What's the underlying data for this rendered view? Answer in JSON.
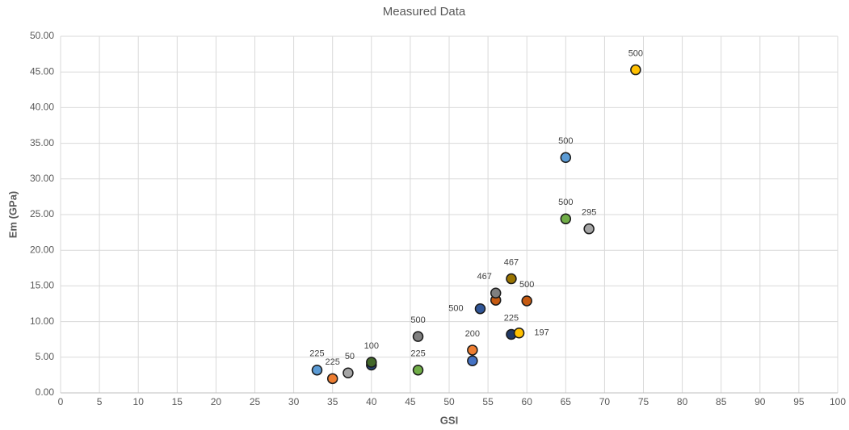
{
  "chart_data": {
    "type": "scatter",
    "title": "Measured Data",
    "x_label": "GSI",
    "y_label": "Em (GPa)",
    "x": [
      33,
      35,
      37,
      40,
      40,
      46,
      46,
      53,
      53,
      54,
      56,
      56,
      58,
      58,
      59,
      60,
      65,
      65,
      68,
      74
    ],
    "values": [
      3.2,
      2.0,
      2.8,
      3.9,
      4.3,
      3.2,
      7.9,
      4.5,
      6.0,
      11.8,
      13.0,
      14.0,
      16.0,
      8.2,
      8.4,
      12.9,
      33.0,
      24.4,
      23.0,
      45.3
    ],
    "colors": [
      "#5b9bd5",
      "#ed7d31",
      "#a5a5a5",
      "#264478",
      "#43682b",
      "#70ad47",
      "#7f7f7f",
      "#4472c4",
      "#ed7d31",
      "#2f5597",
      "#c55a11",
      "#7f7f7f",
      "#997300",
      "#203864",
      "#ffc000",
      "#c55a11",
      "#5b9bd5",
      "#70ad47",
      "#a5a5a5",
      "#ffc000"
    ],
    "point_labels": [
      "225",
      "225",
      "50",
      null,
      "100",
      "225",
      "500",
      null,
      "200",
      "500",
      null,
      "467",
      "467",
      "225",
      "197",
      "500",
      "500",
      "500",
      "295",
      "500"
    ],
    "xlim": [
      0,
      100
    ],
    "xticks": [
      0,
      5,
      10,
      15,
      20,
      25,
      30,
      35,
      40,
      45,
      50,
      55,
      60,
      65,
      70,
      75,
      80,
      85,
      90,
      95,
      100
    ],
    "ylim": [
      0,
      50
    ],
    "yticks": [
      {
        "value": 0,
        "label": "0.00"
      },
      {
        "value": 5,
        "label": "5.00"
      },
      {
        "value": 10,
        "label": "10.00"
      },
      {
        "value": 15,
        "label": "15.00"
      },
      {
        "value": 20,
        "label": "20.00"
      },
      {
        "value": 25,
        "label": "25.00"
      },
      {
        "value": 30,
        "label": "30.00"
      },
      {
        "value": 35,
        "label": "35.00"
      },
      {
        "value": 40,
        "label": "40.00"
      },
      {
        "value": 45,
        "label": "45.00"
      },
      {
        "value": 50,
        "label": "50.00"
      }
    ],
    "grid": true
  }
}
